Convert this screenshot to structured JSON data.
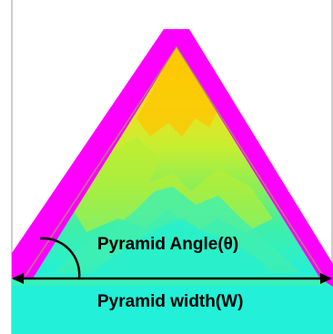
{
  "figure": {
    "angle_label": "Pyramid Angle(θ)",
    "width_label": "Pyramid width(W)"
  },
  "colors": {
    "outline": "#ff00ff",
    "hot": "#ffd200",
    "warm": "#d8ef2a",
    "mid": "#9cef4a",
    "cool": "#33efb0",
    "base": "#22f0d8",
    "arrow": "#000000",
    "frame": "#9a9a9a"
  }
}
